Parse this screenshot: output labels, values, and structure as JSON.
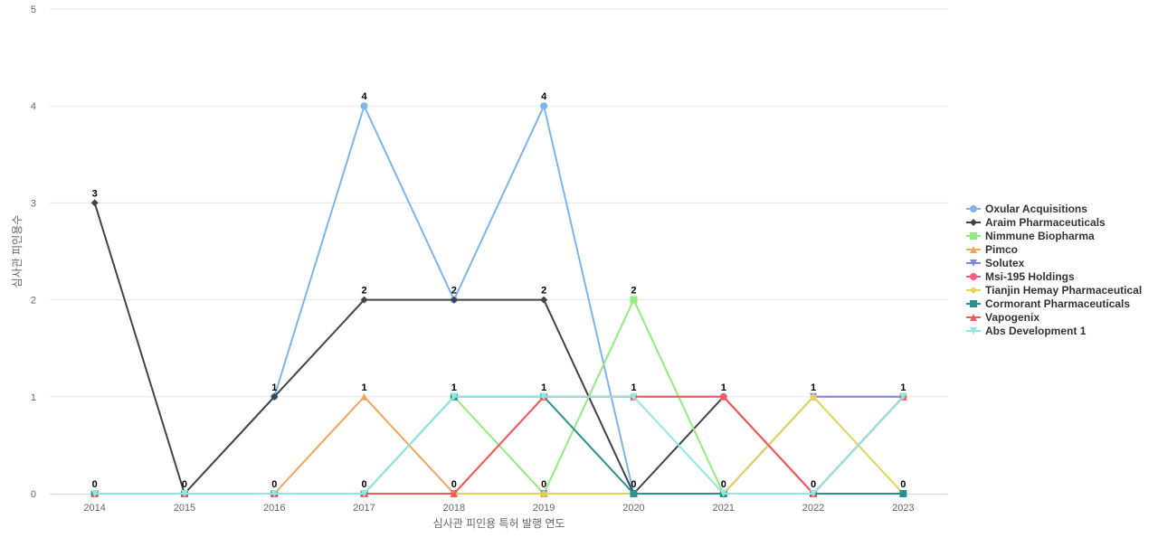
{
  "chart_data": {
    "type": "line",
    "title": "",
    "xlabel": "심사관 피인용 특허 발행 연도",
    "ylabel": "심사관 피인용수",
    "categories": [
      "2014",
      "2015",
      "2016",
      "2017",
      "2018",
      "2019",
      "2020",
      "2021",
      "2022",
      "2023"
    ],
    "ylim": [
      0,
      5
    ],
    "yticks": [
      "0",
      "1",
      "2",
      "3",
      "4",
      "5"
    ],
    "grid": true,
    "legend_position": "right",
    "series": [
      {
        "name": "Oxular Acquisitions",
        "color": "#7cb5ec",
        "marker": "circle",
        "values": [
          0,
          0,
          1,
          4,
          2,
          4,
          0,
          0,
          0,
          1
        ]
      },
      {
        "name": "Araim Pharmaceuticals",
        "color": "#434348",
        "marker": "diamond",
        "values": [
          3,
          0,
          1,
          2,
          2,
          2,
          0,
          1,
          0,
          1
        ]
      },
      {
        "name": "Nimmune Biopharma",
        "color": "#90ed7d",
        "marker": "square",
        "values": [
          0,
          0,
          0,
          0,
          1,
          0,
          2,
          0,
          0,
          1
        ]
      },
      {
        "name": "Pimco",
        "color": "#f7a35c",
        "marker": "triangle",
        "values": [
          0,
          0,
          0,
          1,
          0,
          0,
          0,
          0,
          1,
          1
        ]
      },
      {
        "name": "Solutex",
        "color": "#8085e9",
        "marker": "triangle-down",
        "values": [
          0,
          0,
          0,
          0,
          0,
          0,
          0,
          0,
          1,
          1
        ]
      },
      {
        "name": "Msi-195 Holdings",
        "color": "#f15c80",
        "marker": "circle",
        "values": [
          0,
          0,
          0,
          0,
          0,
          1,
          1,
          1,
          0,
          1
        ]
      },
      {
        "name": "Tianjin Hemay Pharmaceutical",
        "color": "#e4d354",
        "marker": "diamond",
        "values": [
          0,
          0,
          0,
          0,
          0,
          0,
          0,
          0,
          1,
          0
        ]
      },
      {
        "name": "Cormorant Pharmaceuticals",
        "color": "#2b908f",
        "marker": "square",
        "values": [
          0,
          0,
          0,
          0,
          1,
          1,
          0,
          0,
          0,
          0
        ]
      },
      {
        "name": "Vapogenix",
        "color": "#f45b5b",
        "marker": "triangle",
        "values": [
          0,
          0,
          0,
          0,
          0,
          1,
          1,
          1,
          0,
          1
        ]
      },
      {
        "name": "Abs Development 1",
        "color": "#91e8e1",
        "marker": "triangle-down",
        "values": [
          0,
          0,
          0,
          0,
          1,
          1,
          1,
          0,
          0,
          1
        ]
      }
    ],
    "point_labels": [
      {
        "x": "2014",
        "y": 3,
        "text": "3"
      },
      {
        "x": "2014",
        "y": 0,
        "text": "0"
      },
      {
        "x": "2015",
        "y": 0,
        "text": "0"
      },
      {
        "x": "2016",
        "y": 1,
        "text": "1"
      },
      {
        "x": "2016",
        "y": 0,
        "text": "0"
      },
      {
        "x": "2017",
        "y": 4,
        "text": "4"
      },
      {
        "x": "2017",
        "y": 2,
        "text": "2"
      },
      {
        "x": "2017",
        "y": 1,
        "text": "1"
      },
      {
        "x": "2017",
        "y": 0,
        "text": "0"
      },
      {
        "x": "2018",
        "y": 2,
        "text": "2"
      },
      {
        "x": "2018",
        "y": 1,
        "text": "1"
      },
      {
        "x": "2018",
        "y": 0,
        "text": "0"
      },
      {
        "x": "2019",
        "y": 4,
        "text": "4"
      },
      {
        "x": "2019",
        "y": 2,
        "text": "2"
      },
      {
        "x": "2019",
        "y": 1,
        "text": "1"
      },
      {
        "x": "2019",
        "y": 0,
        "text": "0"
      },
      {
        "x": "2020",
        "y": 2,
        "text": "2"
      },
      {
        "x": "2020",
        "y": 1,
        "text": "1"
      },
      {
        "x": "2020",
        "y": 0,
        "text": "0"
      },
      {
        "x": "2021",
        "y": 1,
        "text": "1"
      },
      {
        "x": "2021",
        "y": 0,
        "text": "0"
      },
      {
        "x": "2022",
        "y": 1,
        "text": "1"
      },
      {
        "x": "2022",
        "y": 0,
        "text": "0"
      },
      {
        "x": "2023",
        "y": 1,
        "text": "1"
      },
      {
        "x": "2023",
        "y": 0,
        "text": "0"
      }
    ]
  }
}
